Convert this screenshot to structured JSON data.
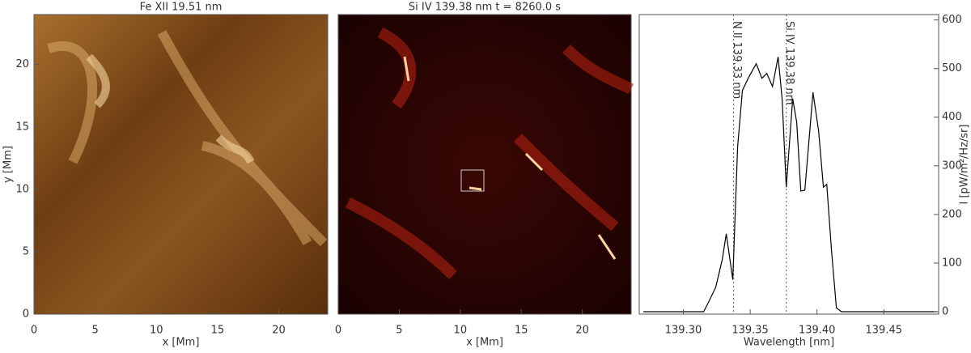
{
  "chart_data": [
    {
      "type": "image",
      "title": "Fe XII  19.51 nm",
      "xlabel": "x [Mm]",
      "ylabel": "y [Mm]",
      "xlim": [
        0,
        24
      ],
      "ylim": [
        0,
        24
      ],
      "xticks": [
        0,
        5,
        10,
        15,
        20
      ],
      "yticks": [
        0,
        5,
        10,
        15,
        20
      ],
      "colormap": "brown"
    },
    {
      "type": "image",
      "title": "Si IV 139.38 nm t =  8260.0 s",
      "xlabel": "x [Mm]",
      "xlim": [
        0,
        24
      ],
      "ylim": [
        0,
        24
      ],
      "xticks": [
        0,
        5,
        10,
        15,
        20
      ],
      "colormap": "red"
    },
    {
      "type": "line",
      "xlabel": "Wavelength [nm]",
      "ylabel": "I [pW/m²/Hz/sr]",
      "xlim": [
        139.267,
        139.491
      ],
      "ylim": [
        -5,
        611
      ],
      "xticks": [
        {
          "value": 139.3,
          "label": "139.30"
        },
        {
          "value": 139.35,
          "label": "139.35"
        },
        {
          "value": 139.4,
          "label": "139.40"
        },
        {
          "value": 139.45,
          "label": "139.45"
        }
      ],
      "yticks": [
        0,
        100,
        200,
        300,
        400,
        500,
        600
      ],
      "vlines": [
        {
          "x": 139.3376,
          "label": "N II 139.33 nm"
        },
        {
          "x": 139.377,
          "label": "Si IV 139.38 nm"
        }
      ],
      "series": [
        {
          "color": "#000000",
          "x": [
            139.27,
            139.3152,
            139.3182,
            139.3242,
            139.3291,
            139.3321,
            139.337,
            139.3406,
            139.3442,
            139.3485,
            139.3545,
            139.3588,
            139.3624,
            139.3667,
            139.3709,
            139.3739,
            139.377,
            139.3818,
            139.3848,
            139.3879,
            139.3909,
            139.397,
            139.4012,
            139.4048,
            139.4073,
            139.4109,
            139.4145,
            139.4182,
            139.49
          ],
          "values": [
            0,
            0,
            16,
            50,
            107,
            160,
            66,
            339,
            455,
            480,
            510,
            480,
            490,
            463,
            524,
            438,
            256,
            438,
            390,
            248,
            250,
            451,
            372,
            256,
            262,
            124,
            8,
            0,
            0
          ]
        }
      ]
    }
  ]
}
